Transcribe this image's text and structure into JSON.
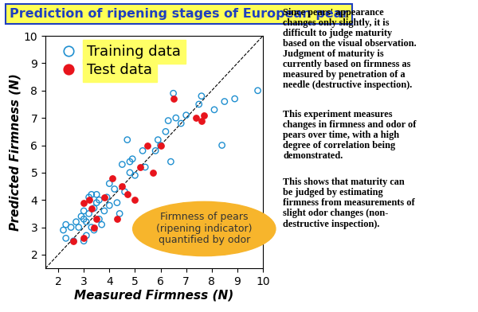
{
  "chart_data": {
    "type": "scatter",
    "title": "Prediction of ripening stages of European pear",
    "x_label": "Measured Firmness (N)",
    "y_label": "Predicted Firmness (N)",
    "xlim": [
      1.5,
      10
    ],
    "ylim": [
      1.5,
      10
    ],
    "xticks": [
      2,
      3,
      4,
      5,
      6,
      7,
      8,
      9,
      10
    ],
    "yticks": [
      2,
      3,
      4,
      5,
      6,
      7,
      8,
      9,
      10
    ],
    "grid": false,
    "legend": "upper left",
    "series": [
      {
        "name": "Training data",
        "color": "#1f8fd0",
        "marker": "open circle",
        "x": [
          2.2,
          2.3,
          2.3,
          2.5,
          2.6,
          2.7,
          2.8,
          2.9,
          3.0,
          3.0,
          3.0,
          3.1,
          3.1,
          3.2,
          3.2,
          3.3,
          3.3,
          3.4,
          3.4,
          3.5,
          3.5,
          3.6,
          3.6,
          3.7,
          3.8,
          3.9,
          4.0,
          4.0,
          4.2,
          4.3,
          4.4,
          4.5,
          4.6,
          4.7,
          4.8,
          4.8,
          4.9,
          5.0,
          5.3,
          5.4,
          5.8,
          5.9,
          6.0,
          6.2,
          6.3,
          6.4,
          6.5,
          6.6,
          6.8,
          7.0,
          7.5,
          7.6,
          8.1,
          8.4,
          8.5,
          8.9,
          9.8
        ],
        "values": [
          2.9,
          2.6,
          3.1,
          3.0,
          2.5,
          3.2,
          3.0,
          3.4,
          2.5,
          3.3,
          3.6,
          2.7,
          3.2,
          4.1,
          3.5,
          3.0,
          4.2,
          3.7,
          2.9,
          3.9,
          4.2,
          3.3,
          4.0,
          3.1,
          3.6,
          4.1,
          3.8,
          4.6,
          4.4,
          3.9,
          3.5,
          5.3,
          4.3,
          6.2,
          5.4,
          5.0,
          5.5,
          4.9,
          5.8,
          5.2,
          5.8,
          6.2,
          6.0,
          6.5,
          6.9,
          5.4,
          7.9,
          7.0,
          6.8,
          7.1,
          7.5,
          7.8,
          7.3,
          6.0,
          7.6,
          7.7,
          8.0
        ]
      },
      {
        "name": "Test data",
        "color": "#e8141c",
        "marker": "filled circle",
        "x": [
          2.6,
          3.0,
          3.0,
          3.2,
          3.3,
          3.4,
          3.5,
          3.8,
          4.1,
          4.3,
          4.5,
          4.7,
          5.0,
          5.2,
          5.5,
          5.7,
          6.0,
          6.5,
          7.4,
          7.6,
          7.7
        ],
        "values": [
          2.5,
          2.6,
          3.9,
          4.0,
          3.7,
          3.0,
          3.3,
          4.1,
          4.8,
          3.3,
          4.5,
          4.2,
          4.0,
          5.2,
          6.0,
          5.0,
          6.0,
          7.7,
          7.0,
          6.9,
          7.1
        ]
      }
    ],
    "annotations": [
      "Firmness of pears\n(ripening indicator)\nquantified by odor"
    ],
    "description": [
      "Since pears' appearance\nchanges only slightly, it is\ndifficult to judge maturity\nbased on the visual observation.\nJudgment of maturity is\ncurrently based on firmness as\nmeasured by penetration of a\nneedle (destructive inspection).",
      "This experiment measures\nchanges in firmness and odor of\npears over time, with a high\ndegree of correlation being\ndemonstrated.",
      "This shows that maturity can\nbe judged by estimating\nfirmness from measurements of\nslight odor changes (non-\ndestructive inspection)."
    ]
  }
}
